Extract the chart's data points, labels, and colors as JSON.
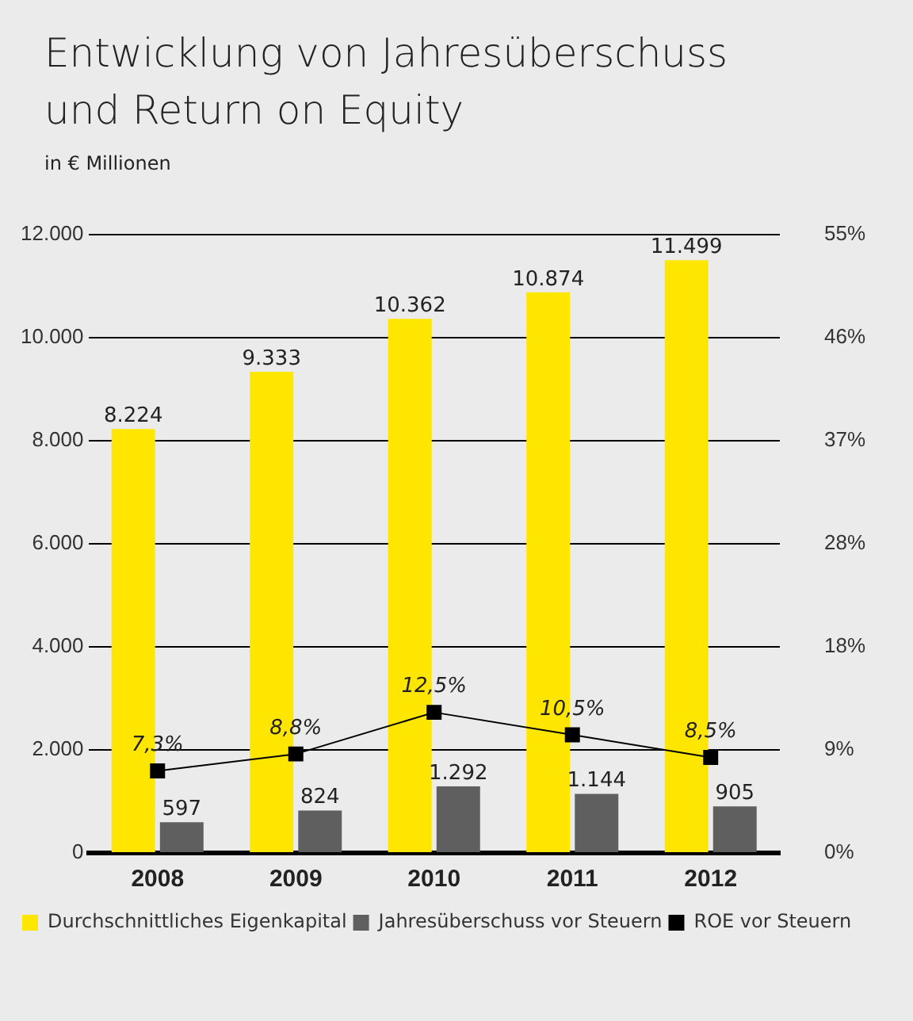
{
  "chart_data": {
    "type": "bar",
    "title": "Entwicklung von Jahresüberschuss und Return on Equity",
    "subtitle": "in € Millionen",
    "categories": [
      "2008",
      "2009",
      "2010",
      "2011",
      "2012"
    ],
    "series": [
      {
        "name": "Durchschnittliches Eigenkapital",
        "color": "#ffe600",
        "values": [
          8224,
          9333,
          10362,
          10874,
          11499
        ],
        "value_labels": [
          "8.224",
          "9.333",
          "10.362",
          "10.874",
          "11.499"
        ]
      },
      {
        "name": "Jahresüberschuss vor Steuern",
        "color": "#5f5f5f",
        "values": [
          597,
          824,
          1292,
          1144,
          905
        ],
        "value_labels": [
          "597",
          "824",
          "1.292",
          "1.144",
          "905"
        ]
      },
      {
        "name": "ROE vor Steuern",
        "type": "line",
        "axis": "y2",
        "color": "#000000",
        "marker": "square",
        "values": [
          7.3,
          8.8,
          12.5,
          10.5,
          8.5
        ],
        "value_labels": [
          "7,3%",
          "8,8%",
          "12,5%",
          "10,5%",
          "8,5%"
        ]
      }
    ],
    "ylim": [
      0,
      12000
    ],
    "yticks": [
      {
        "value": 0,
        "label": "0"
      },
      {
        "value": 2000,
        "label": "2.000"
      },
      {
        "value": 4000,
        "label": "4.000"
      },
      {
        "value": 6000,
        "label": "6.000"
      },
      {
        "value": 8000,
        "label": "8.000"
      },
      {
        "value": 10000,
        "label": "10.000"
      },
      {
        "value": 12000,
        "label": "12.000"
      }
    ],
    "y2lim": [
      0,
      55
    ],
    "y2ticks": [
      {
        "value": 0,
        "label": "0%"
      },
      {
        "value": 9.17,
        "label": "9%"
      },
      {
        "value": 18.33,
        "label": "18%"
      },
      {
        "value": 27.5,
        "label": "28%"
      },
      {
        "value": 36.67,
        "label": "37%"
      },
      {
        "value": 45.83,
        "label": "46%"
      },
      {
        "value": 55,
        "label": "55%"
      }
    ],
    "grid": "y",
    "legend": "bottom left"
  }
}
